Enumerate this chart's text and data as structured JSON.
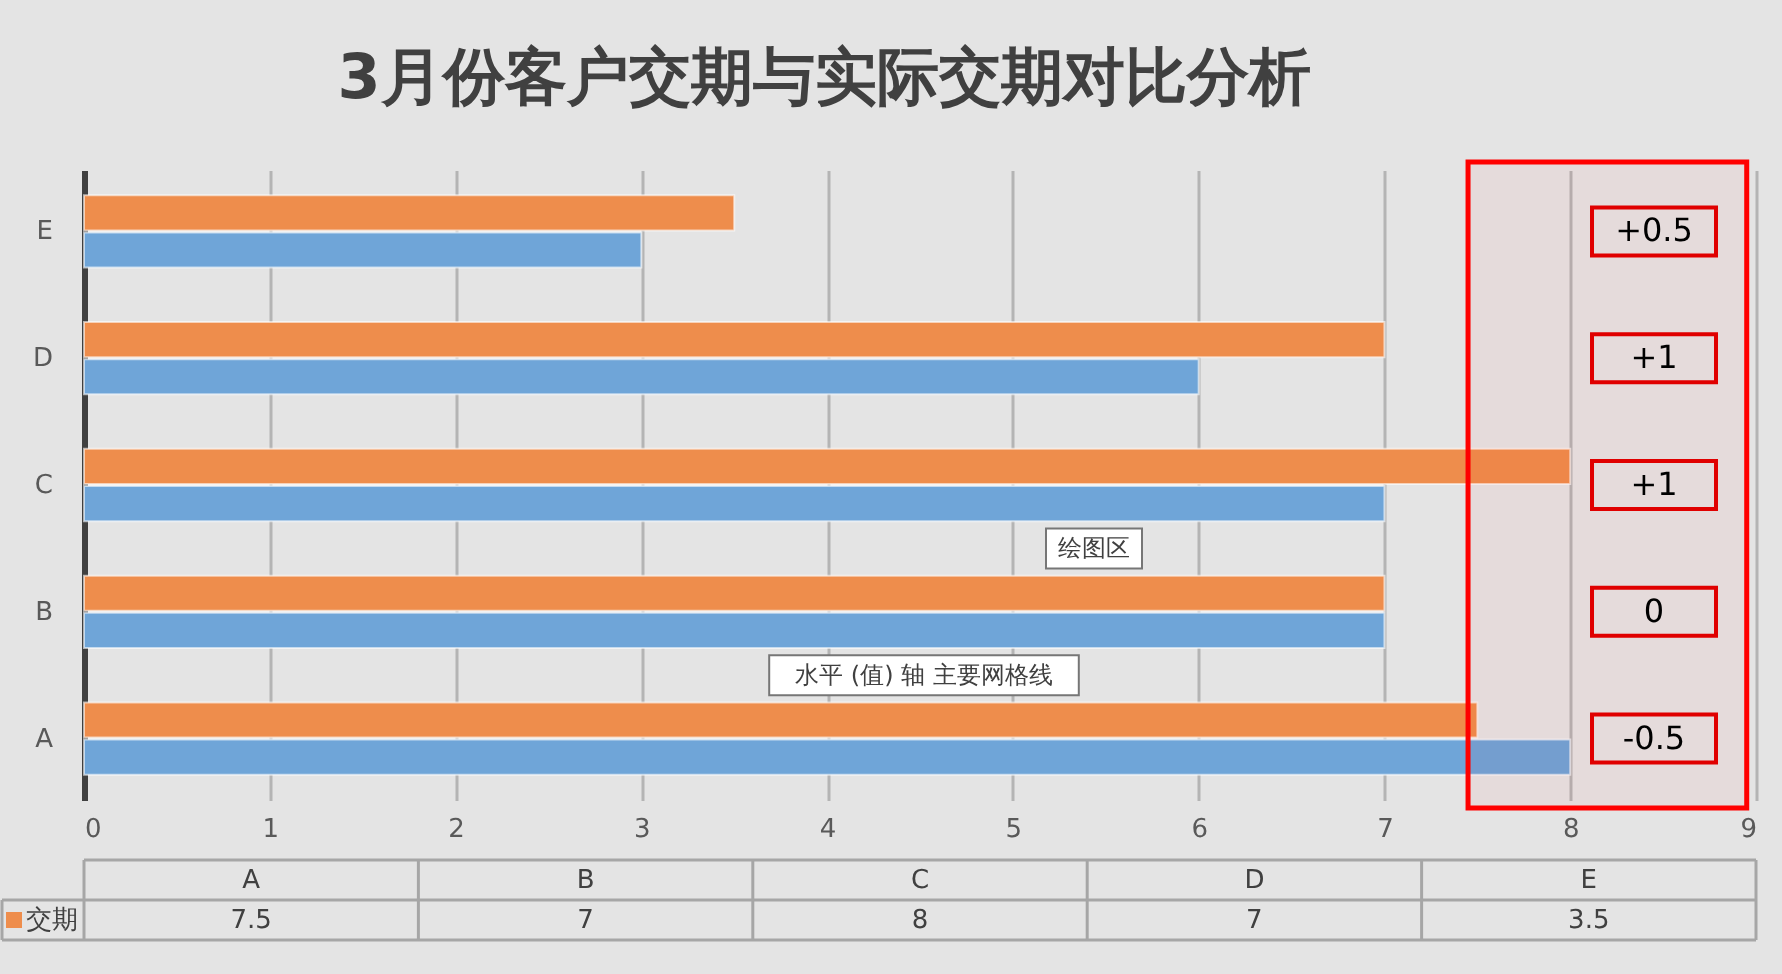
{
  "chart_data": {
    "type": "bar",
    "orientation": "horizontal",
    "title": "3月份客户交期与实际交期对比分析",
    "categories": [
      "E",
      "D",
      "C",
      "B",
      "A"
    ],
    "series": [
      {
        "name": "交期",
        "color": "#ee8d4c",
        "values": [
          3.5,
          7,
          8,
          7,
          7.5
        ]
      },
      {
        "color": "#6fa5d8",
        "values": [
          3,
          6,
          7,
          7,
          8
        ]
      }
    ],
    "xlim": [
      0,
      9
    ],
    "xticks": [
      0,
      1,
      2,
      3,
      4,
      5,
      6,
      7,
      8,
      9
    ],
    "grid": "x",
    "bands": [
      {
        "axis": "x",
        "from": 7.45,
        "to": 8.95,
        "color": "#ff0000"
      }
    ],
    "annotations": [
      "+0.5",
      "+1",
      "+1",
      "0",
      "-0.5",
      "7.5",
      "7",
      "8",
      "7",
      "3.5",
      "绘图区",
      "水平 (值) 轴 主要网格线"
    ]
  }
}
